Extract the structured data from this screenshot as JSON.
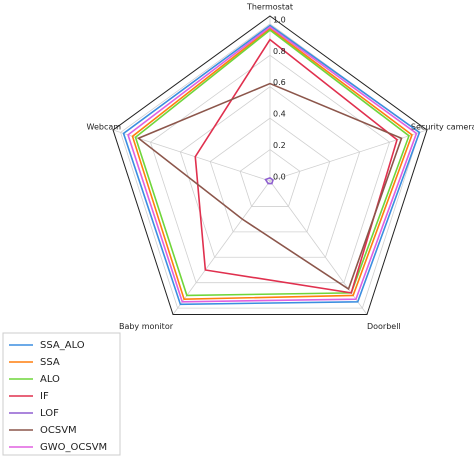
{
  "chart_data": {
    "type": "radar",
    "categories": [
      "Thermostat",
      "Security camera",
      "Doorbell",
      "Baby monitor",
      "Webcam"
    ],
    "ylim": [
      0,
      1.05
    ],
    "yticks": [
      {
        "value": 0,
        "label": "0.0"
      },
      0.2,
      0.4,
      0.6,
      0.8,
      {
        "value": 1,
        "label": "1.0"
      }
    ],
    "grid": true,
    "legend": "lower left",
    "series": [
      {
        "name": "SSA_ALO",
        "color": "#3b8ee0",
        "values": [
          0.99,
          1.0,
          0.95,
          0.97,
          0.98
        ]
      },
      {
        "name": "SSA",
        "color": "#ff7f0e",
        "values": [
          0.97,
          0.95,
          0.9,
          0.93,
          0.92
        ]
      },
      {
        "name": "ALO",
        "color": "#6fd63a",
        "values": [
          0.96,
          0.93,
          0.88,
          0.9,
          0.9
        ]
      },
      {
        "name": "IF",
        "color": "#e0304e",
        "values": [
          0.9,
          0.85,
          0.88,
          0.7,
          0.5
        ]
      },
      {
        "name": "LOF",
        "color": "#8f5fd0",
        "values": [
          0.02,
          0.02,
          0.02,
          0.02,
          0.03
        ]
      },
      {
        "name": "OCSVM",
        "color": "#8c564b",
        "values": [
          0.62,
          0.88,
          0.85,
          0.3,
          0.88
        ]
      },
      {
        "name": "GWO_OCSVM",
        "color": "#e060e0",
        "values": [
          0.98,
          0.98,
          0.93,
          0.95,
          0.95
        ]
      }
    ]
  }
}
